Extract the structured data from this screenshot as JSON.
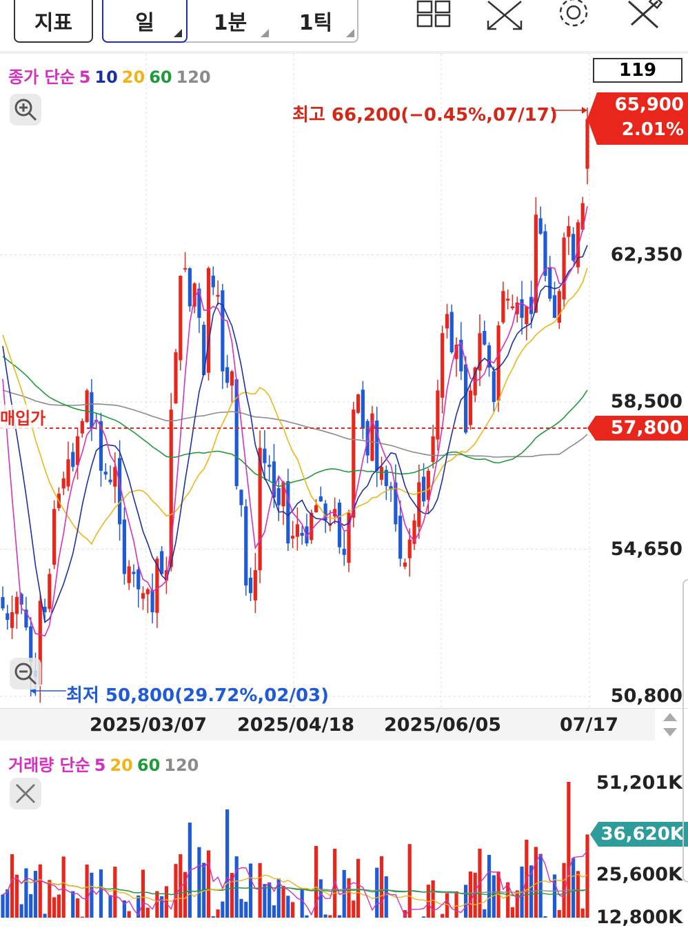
{
  "toolbar": {
    "indicator_label": "지표",
    "period_day": "일",
    "period_min": "1분",
    "period_tick": "1틱"
  },
  "price_legend": {
    "label": "종가 단순",
    "ma5": "5",
    "ma10": "10",
    "ma20": "20",
    "ma60": "60",
    "ma120": "120"
  },
  "volume_legend": {
    "label": "거래량 단순",
    "ma5": "5",
    "ma20": "20",
    "ma60": "60",
    "ma120": "120"
  },
  "count_box": "119",
  "high_annotation": "최고 66,200(−0.45%,07/17)",
  "low_annotation": "최저 50,800(29.72%,02/03)",
  "current_price": "65,900",
  "current_change": "2.01%",
  "purchase_label": "매입가",
  "purchase_price": "57,800",
  "current_volume": "36,620K",
  "colors": {
    "up": "#e8261b",
    "down": "#1f5bd6",
    "ma5": "#d62fbf",
    "ma10": "#1a2fa8",
    "ma20": "#f0b418",
    "ma60": "#1f9a3a",
    "ma120": "#8a8a8a"
  },
  "chart_data": [
    {
      "type": "candlestick",
      "y_ticks": [
        "62,350",
        "58,500",
        "54,650",
        "50,800"
      ],
      "y_tick_values": [
        62350,
        58500,
        54650,
        50800
      ],
      "x_tick_labels": [
        "2025/03/07",
        "2025/04/18",
        "2025/06/05",
        "07/17"
      ],
      "high": 66200,
      "low": 50800,
      "last": 65900,
      "purchase_price": 57800,
      "close": [
        53100,
        52800,
        53000,
        53400,
        53200,
        52600,
        51700,
        51300,
        53300,
        53000,
        54000,
        55700,
        56100,
        56500,
        57000,
        56800,
        57600,
        58000,
        58800,
        57800,
        58000,
        56700,
        56600,
        56400,
        56800,
        55300,
        54000,
        54200,
        54000,
        53600,
        53500,
        53600,
        53000,
        54400,
        54000,
        54100,
        58300,
        59800,
        61800,
        62000,
        61000,
        61600,
        60700,
        59200,
        62000,
        61500,
        61300,
        59300,
        59000,
        59300,
        56300,
        55800,
        53700,
        53500,
        54100,
        57300,
        56900,
        56800,
        56000,
        55800,
        56400,
        54800,
        55000,
        55300,
        55000,
        54800,
        55600,
        55800,
        55900,
        55400,
        55300,
        55700,
        54700,
        54500,
        55600,
        58300,
        58700,
        57800,
        57100,
        58200,
        56700,
        56800,
        56300,
        56200,
        55300,
        54400,
        54300,
        54900,
        55400,
        56400,
        55900,
        56700,
        57600,
        58800,
        60300,
        60800,
        59800,
        60000,
        59300,
        57700,
        58800,
        59400,
        60300,
        60000,
        59400,
        58500,
        60500,
        61400,
        61200,
        61000,
        61100,
        60700,
        61000,
        60800,
        63400,
        62900,
        61800,
        61200,
        60700,
        61400,
        62800,
        63100,
        62200,
        63200,
        63700,
        65900
      ],
      "volume_axis": {
        "labels": [
          "51,201K",
          "25,600K",
          "12,800K"
        ],
        "values": [
          51201,
          25600,
          12800
        ]
      }
    }
  ]
}
